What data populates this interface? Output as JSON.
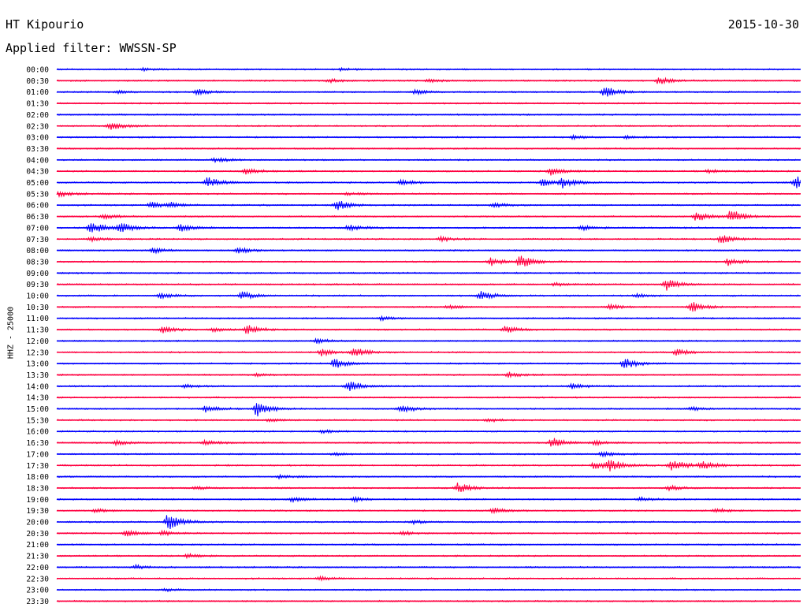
{
  "header": {
    "station": "HT Kipourio",
    "date": "2015-10-30",
    "filter": "Applied filter: WWSSN-SP"
  },
  "chart_data": {
    "type": "line",
    "title": "HT Kipourio",
    "date": "2015-10-30",
    "filter": "Applied filter: WWSSN-SP",
    "ylabel": "HHZ - 25000",
    "xlabel": "",
    "grid": false,
    "legend": "none",
    "x_range_minutes": [
      0,
      30
    ],
    "colors": {
      "even": "#0000ff",
      "odd": "#ff0040"
    },
    "rows": [
      {
        "time": "00:00",
        "events": [
          [
            3.5,
            0.3
          ],
          [
            11.5,
            0.3
          ]
        ]
      },
      {
        "time": "00:30",
        "events": [
          [
            11,
            0.4
          ],
          [
            15,
            0.4
          ],
          [
            24.3,
            0.8
          ]
        ]
      },
      {
        "time": "01:00",
        "events": [
          [
            2.5,
            0.3
          ],
          [
            5.7,
            0.6
          ],
          [
            14.5,
            0.5
          ],
          [
            22.1,
            1.3
          ]
        ]
      },
      {
        "time": "01:30",
        "events": []
      },
      {
        "time": "02:00",
        "events": []
      },
      {
        "time": "02:30",
        "events": [
          [
            2.2,
            0.9
          ]
        ]
      },
      {
        "time": "03:00",
        "events": [
          [
            20.8,
            0.4
          ],
          [
            23,
            0.3
          ]
        ]
      },
      {
        "time": "03:30",
        "events": []
      },
      {
        "time": "04:00",
        "events": [
          [
            6.4,
            0.5
          ]
        ]
      },
      {
        "time": "04:30",
        "events": [
          [
            7.6,
            0.8
          ],
          [
            19.9,
            0.9
          ],
          [
            26.3,
            0.4
          ]
        ]
      },
      {
        "time": "05:00",
        "events": [
          [
            6.1,
            1.3
          ],
          [
            13.9,
            0.7
          ],
          [
            19.6,
            0.8
          ],
          [
            20.4,
            1.1
          ],
          [
            29.8,
            1.5
          ]
        ]
      },
      {
        "time": "05:30",
        "events": [
          [
            0.1,
            0.6
          ],
          [
            11.7,
            0.3
          ]
        ]
      },
      {
        "time": "06:00",
        "events": [
          [
            3.8,
            0.7
          ],
          [
            4.6,
            0.5
          ],
          [
            11.3,
            1.2
          ],
          [
            17.6,
            0.5
          ]
        ]
      },
      {
        "time": "06:30",
        "events": [
          [
            1.9,
            0.6
          ],
          [
            25.8,
            1.1
          ],
          [
            27.2,
            1.5
          ]
        ]
      },
      {
        "time": "07:00",
        "events": [
          [
            1.4,
            1.6
          ],
          [
            2.6,
            1.2
          ],
          [
            5.0,
            0.9
          ],
          [
            11.8,
            0.7
          ],
          [
            21.2,
            0.5
          ]
        ]
      },
      {
        "time": "07:30",
        "events": [
          [
            1.4,
            0.5
          ],
          [
            15.5,
            0.5
          ],
          [
            26.8,
            1.2
          ]
        ]
      },
      {
        "time": "08:00",
        "events": [
          [
            3.9,
            0.6
          ],
          [
            7.3,
            0.8
          ]
        ]
      },
      {
        "time": "08:30",
        "events": [
          [
            17.5,
            0.9
          ],
          [
            18.7,
            1.4
          ],
          [
            27.1,
            0.8
          ]
        ]
      },
      {
        "time": "09:00",
        "events": []
      },
      {
        "time": "09:30",
        "events": [
          [
            24.6,
            1.4
          ],
          [
            20.1,
            0.4
          ]
        ]
      },
      {
        "time": "10:00",
        "events": [
          [
            4.2,
            0.6
          ],
          [
            7.5,
            0.9
          ],
          [
            17.1,
            1.0
          ],
          [
            23.4,
            0.4
          ]
        ]
      },
      {
        "time": "10:30",
        "events": [
          [
            22.3,
            0.6
          ],
          [
            25.6,
            1.3
          ],
          [
            15.8,
            0.4
          ]
        ]
      },
      {
        "time": "11:00",
        "events": [
          [
            13.1,
            0.4
          ]
        ]
      },
      {
        "time": "11:30",
        "events": [
          [
            4.3,
            0.7
          ],
          [
            6.3,
            0.5
          ],
          [
            7.7,
            1.1
          ],
          [
            18.1,
            0.8
          ]
        ]
      },
      {
        "time": "12:00",
        "events": [
          [
            10.5,
            0.5
          ]
        ]
      },
      {
        "time": "12:30",
        "events": [
          [
            10.7,
            0.8
          ],
          [
            12.0,
            1.2
          ],
          [
            25.0,
            0.8
          ]
        ]
      },
      {
        "time": "13:00",
        "events": [
          [
            11.2,
            1.1
          ],
          [
            22.9,
            1.3
          ]
        ]
      },
      {
        "time": "13:30",
        "events": [
          [
            18.2,
            0.6
          ],
          [
            8.1,
            0.3
          ]
        ]
      },
      {
        "time": "14:00",
        "events": [
          [
            11.8,
            1.3
          ],
          [
            20.8,
            0.6
          ],
          [
            5.2,
            0.4
          ]
        ]
      },
      {
        "time": "14:30",
        "events": []
      },
      {
        "time": "15:00",
        "events": [
          [
            6.0,
            0.8
          ],
          [
            8.1,
            1.9
          ],
          [
            13.9,
            0.9
          ],
          [
            25.6,
            0.4
          ]
        ]
      },
      {
        "time": "15:30",
        "events": [
          [
            17.4,
            0.4
          ],
          [
            8.6,
            0.3
          ]
        ]
      },
      {
        "time": "16:00",
        "events": [
          [
            10.7,
            0.4
          ]
        ]
      },
      {
        "time": "16:30",
        "events": [
          [
            2.4,
            0.5
          ],
          [
            6.0,
            0.6
          ],
          [
            20.0,
            1.2
          ],
          [
            21.7,
            0.5
          ]
        ]
      },
      {
        "time": "17:00",
        "events": [
          [
            22.0,
            0.6
          ],
          [
            11.2,
            0.3
          ]
        ]
      },
      {
        "time": "17:30",
        "events": [
          [
            21.7,
            0.8
          ],
          [
            22.3,
            1.4
          ],
          [
            24.8,
            1.5
          ],
          [
            26.0,
            1.1
          ]
        ]
      },
      {
        "time": "18:00",
        "events": [
          [
            9.0,
            0.4
          ]
        ]
      },
      {
        "time": "18:30",
        "events": [
          [
            16.2,
            1.2
          ],
          [
            24.7,
            0.6
          ],
          [
            5.6,
            0.3
          ]
        ]
      },
      {
        "time": "19:00",
        "events": [
          [
            9.5,
            0.5
          ],
          [
            12.0,
            0.5
          ],
          [
            23.5,
            0.4
          ]
        ]
      },
      {
        "time": "19:30",
        "events": [
          [
            1.6,
            0.4
          ],
          [
            17.6,
            0.6
          ],
          [
            26.6,
            0.5
          ]
        ]
      },
      {
        "time": "20:00",
        "events": [
          [
            4.5,
            1.9
          ],
          [
            14.4,
            0.4
          ]
        ]
      },
      {
        "time": "20:30",
        "events": [
          [
            2.8,
            0.8
          ],
          [
            4.3,
            0.5
          ],
          [
            14.0,
            0.4
          ]
        ]
      },
      {
        "time": "21:00",
        "events": []
      },
      {
        "time": "21:30",
        "events": [
          [
            5.3,
            0.4
          ]
        ]
      },
      {
        "time": "22:00",
        "events": [
          [
            3.2,
            0.4
          ]
        ]
      },
      {
        "time": "22:30",
        "events": [
          [
            10.6,
            0.4
          ]
        ]
      },
      {
        "time": "23:00",
        "events": [
          [
            4.4,
            0.3
          ]
        ]
      },
      {
        "time": "23:30",
        "events": []
      }
    ]
  }
}
